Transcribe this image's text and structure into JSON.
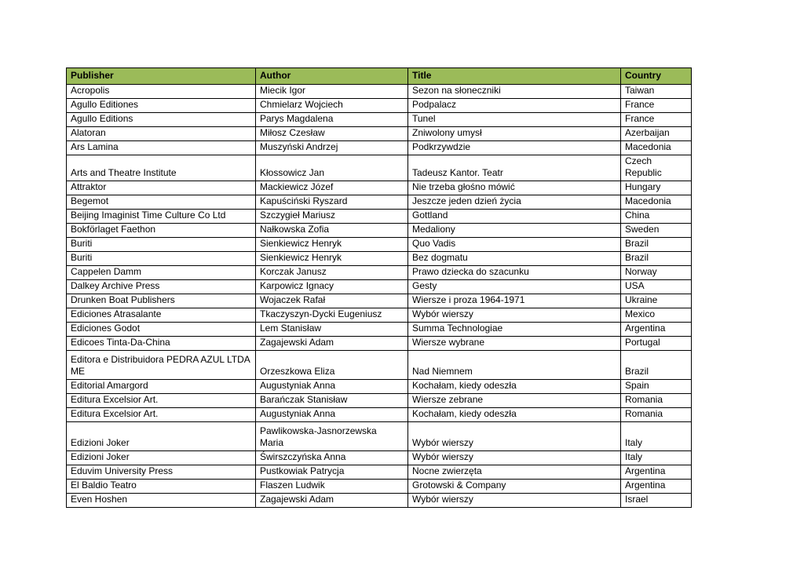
{
  "page": {
    "background": "#ffffff"
  },
  "table": {
    "header_bg": "#9BBB59",
    "border_color": "#000000",
    "columns": [
      "Publisher",
      "Author",
      "Title",
      "Country"
    ],
    "tall_row_indexes": [
      18,
      22
    ],
    "rows": [
      [
        "Acropolis",
        "Miecik Igor",
        "Sezon na słoneczniki",
        "Taiwan"
      ],
      [
        "Agullo Editiones",
        "Chmielarz Wojciech",
        "Podpalacz",
        "France"
      ],
      [
        "Agullo Editions",
        "Parys Magdalena",
        "Tunel",
        "France"
      ],
      [
        "Alatoran",
        "Miłosz Czesław",
        "Zniwolony umysł",
        "Azerbaijan"
      ],
      [
        "Ars Lamina",
        "Muszyński Andrzej",
        "Podkrzywdzie",
        "Macedonia"
      ],
      [
        "Arts and Theatre Institute",
        "Kłossowicz Jan",
        "Tadeusz Kantor. Teatr",
        "Czech Republic"
      ],
      [
        "Attraktor",
        "Mackiewicz Józef",
        "Nie trzeba głośno mówić",
        "Hungary"
      ],
      [
        "Begemot",
        "Kapuściński Ryszard",
        "Jeszcze jeden dzień życia",
        "Macedonia"
      ],
      [
        "Beijing Imaginist Time Culture Co Ltd",
        "Szczygieł Mariusz",
        "Gottland",
        "China"
      ],
      [
        "Bokförlaget Faethon",
        "Nałkowska Zofia",
        "Medaliony",
        "Sweden"
      ],
      [
        "Buriti",
        "Sienkiewicz Henryk",
        "Quo Vadis",
        "Brazil"
      ],
      [
        "Buriti",
        "Sienkiewicz Henryk",
        "Bez dogmatu",
        "Brazil"
      ],
      [
        "Cappelen Damm",
        "Korczak Janusz",
        "Prawo dziecka do szacunku",
        "Norway"
      ],
      [
        "Dalkey Archive Press",
        "Karpowicz Ignacy",
        "Gesty",
        "USA"
      ],
      [
        "Drunken Boat Publishers",
        "Wojaczek Rafał",
        "Wiersze i proza 1964-1971",
        "Ukraine"
      ],
      [
        "Ediciones Atrasalante",
        "Tkaczyszyn-Dycki Eugeniusz",
        "Wybór wierszy",
        "Mexico"
      ],
      [
        "Ediciones Godot",
        "Lem Stanisław",
        "Summa Technologiae",
        "Argentina"
      ],
      [
        "Edicoes Tinta-Da-China",
        "Zagajewski Adam",
        "Wiersze wybrane",
        "Portugal"
      ],
      [
        "Editora e Distribuidora PEDRA AZUL LTDA\nME",
        "Orzeszkowa Eliza",
        "Nad Niemnem",
        "Brazil"
      ],
      [
        "Editorial Amargord",
        "Augustyniak Anna",
        "Kochałam, kiedy odeszła",
        "Spain"
      ],
      [
        "Editura Excelsior Art.",
        "Barańczak Stanisław",
        "Wiersze zebrane",
        "Romania"
      ],
      [
        "Editura Excelsior Art.",
        "Augustyniak Anna",
        "Kochałam, kiedy odeszła",
        "Romania"
      ],
      [
        "Edizioni Joker",
        "Pawlikowska-Jasnorzewska\nMaria",
        "Wybór wierszy",
        "Italy"
      ],
      [
        "Edizioni Joker",
        "Świrszczyńska Anna",
        "Wybór wierszy",
        "Italy"
      ],
      [
        "Eduvim University Press",
        "Pustkowiak Patrycja",
        "Nocne zwierzęta",
        "Argentina"
      ],
      [
        "El Baldio Teatro",
        "Flaszen Ludwik",
        "Grotowski & Company",
        "Argentina"
      ],
      [
        "Even Hoshen",
        "Zagajewski Adam",
        "Wybór wierszy",
        "Israel"
      ]
    ]
  }
}
